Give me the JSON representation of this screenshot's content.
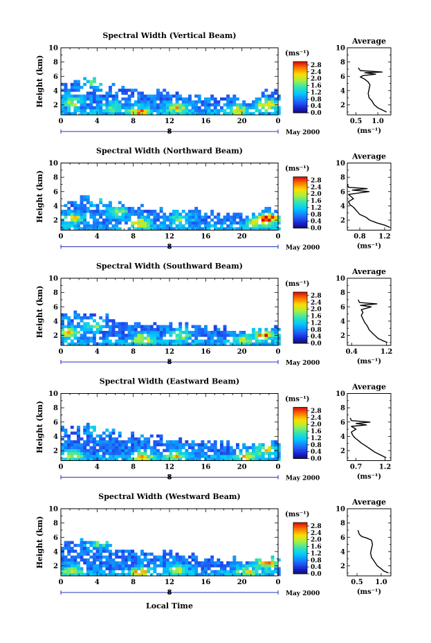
{
  "figure": {
    "xlabel": "Local Time",
    "ylabel": "Height (km)",
    "day_label": "8",
    "month_label": "May 2000",
    "colorbar_unit": "(ms⁻¹)",
    "colorbar_ticks": [
      "2.8",
      "2.4",
      "2.0",
      "1.6",
      "1.2",
      "0.8",
      "0.4",
      "0.0"
    ],
    "avg_title": "Average",
    "avg_unit": "(ms⁻¹)"
  },
  "chart_data": [
    {
      "type": "heatmap",
      "title": "Spectral Width (Vertical Beam)",
      "xlabel": "Local Time",
      "ylabel": "Height (km)",
      "x_ticks": [
        "0",
        "4",
        "8",
        "12",
        "16",
        "20",
        "0"
      ],
      "y_ticks": [
        "2",
        "4",
        "6",
        "8",
        "10"
      ],
      "xlim": [
        0,
        24
      ],
      "ylim": [
        0.6,
        10
      ],
      "colorbar": {
        "min": 0,
        "max": 3.0,
        "ticks": [
          "2.8",
          "2.4",
          "2.0",
          "1.6",
          "1.2",
          "0.8",
          "0.4",
          "0.0"
        ]
      },
      "top_km": [
        5.0,
        5.3,
        5.8,
        5.6,
        5.0,
        4.9,
        4.7,
        4.5,
        4.2,
        4.1,
        4.0,
        3.9,
        3.7,
        3.6,
        3.6,
        3.5,
        3.4,
        3.3,
        3.2,
        3.1,
        2.9,
        3.1,
        3.9,
        4.2
      ],
      "hot": [
        {
          "t": 1.0,
          "z": 2.6,
          "v": 2.0
        },
        {
          "t": 3.8,
          "z": 5.4,
          "v": 1.8
        },
        {
          "t": 5.5,
          "z": 2.0,
          "v": 1.6
        },
        {
          "t": 8.5,
          "z": 1.3,
          "v": 2.4
        },
        {
          "t": 12.6,
          "z": 1.8,
          "v": 2.2
        },
        {
          "t": 19.3,
          "z": 1.5,
          "v": 2.0
        },
        {
          "t": 22.6,
          "z": 2.2,
          "v": 2.7
        }
      ],
      "avg": {
        "xticks": [
          "0.5",
          "1.0"
        ],
        "xlim": [
          0.3,
          1.3
        ],
        "yticks": [
          "2",
          "4",
          "6",
          "8",
          "10"
        ],
        "profile": [
          [
            1.2,
            1.0
          ],
          [
            1.1,
            1.3
          ],
          [
            1.0,
            1.6
          ],
          [
            0.92,
            2.0
          ],
          [
            0.86,
            2.6
          ],
          [
            0.8,
            3.0
          ],
          [
            0.78,
            3.6
          ],
          [
            0.8,
            4.2
          ],
          [
            0.82,
            4.8
          ],
          [
            0.78,
            5.2
          ],
          [
            0.7,
            5.6
          ],
          [
            0.6,
            5.9
          ],
          [
            0.66,
            6.1
          ],
          [
            0.95,
            6.3
          ],
          [
            0.7,
            6.5
          ],
          [
            1.1,
            6.6
          ],
          [
            0.6,
            6.8
          ],
          [
            0.55,
            7.2
          ]
        ]
      }
    },
    {
      "type": "heatmap",
      "title": "Spectral Width (Northward Beam)",
      "xlabel": "Local Time",
      "ylabel": "Height (km)",
      "x_ticks": [
        "0",
        "4",
        "8",
        "12",
        "16",
        "20",
        "0"
      ],
      "y_ticks": [
        "2",
        "4",
        "6",
        "8",
        "10"
      ],
      "xlim": [
        0,
        24
      ],
      "ylim": [
        0.6,
        10
      ],
      "colorbar": {
        "min": 0,
        "max": 3.0,
        "ticks": [
          "2.8",
          "2.4",
          "2.0",
          "1.6",
          "1.2",
          "0.8",
          "0.4",
          "0.0"
        ]
      },
      "top_km": [
        4.8,
        5.0,
        5.5,
        5.4,
        4.9,
        4.5,
        4.4,
        4.3,
        4.1,
        4.0,
        3.8,
        3.7,
        3.6,
        3.5,
        3.5,
        3.4,
        3.3,
        3.2,
        3.1,
        3.0,
        2.9,
        3.0,
        3.5,
        4.0
      ],
      "hot": [
        {
          "t": 1.2,
          "z": 2.5,
          "v": 2.1
        },
        {
          "t": 4.0,
          "z": 5.2,
          "v": 1.7
        },
        {
          "t": 6.0,
          "z": 3.3,
          "v": 1.8
        },
        {
          "t": 8.6,
          "z": 1.8,
          "v": 2.2
        },
        {
          "t": 13.0,
          "z": 2.4,
          "v": 1.8
        },
        {
          "t": 22.8,
          "z": 2.5,
          "v": 2.8
        },
        {
          "t": 21.6,
          "z": 2.0,
          "v": 2.5
        }
      ],
      "avg": {
        "xticks": [
          "0.8",
          "1.2"
        ],
        "xlim": [
          0.6,
          1.3
        ],
        "yticks": [
          "2",
          "4",
          "6",
          "8",
          "10"
        ],
        "profile": [
          [
            1.28,
            1.0
          ],
          [
            1.2,
            1.3
          ],
          [
            1.08,
            1.6
          ],
          [
            0.96,
            2.0
          ],
          [
            0.9,
            2.4
          ],
          [
            0.8,
            2.8
          ],
          [
            0.76,
            3.2
          ],
          [
            0.7,
            3.8
          ],
          [
            0.64,
            4.2
          ],
          [
            0.62,
            4.6
          ],
          [
            0.7,
            5.0
          ],
          [
            0.62,
            5.6
          ],
          [
            0.95,
            6.0
          ],
          [
            0.68,
            6.2
          ],
          [
            0.92,
            6.4
          ],
          [
            0.62,
            6.6
          ],
          [
            0.6,
            7.0
          ]
        ]
      }
    },
    {
      "type": "heatmap",
      "title": "Spectral Width (Southward Beam)",
      "xlabel": "Local Time",
      "ylabel": "Height (km)",
      "x_ticks": [
        "0",
        "4",
        "8",
        "12",
        "16",
        "20",
        "0"
      ],
      "y_ticks": [
        "2",
        "4",
        "6",
        "8",
        "10"
      ],
      "xlim": [
        0,
        24
      ],
      "ylim": [
        0.6,
        10
      ],
      "colorbar": {
        "min": 0,
        "max": 3.0,
        "ticks": [
          "2.8",
          "2.4",
          "2.0",
          "1.6",
          "1.2",
          "0.8",
          "0.4",
          "0.0"
        ]
      },
      "top_km": [
        5.2,
        5.3,
        5.1,
        5.0,
        4.8,
        4.6,
        4.4,
        4.2,
        4.0,
        3.9,
        3.8,
        3.7,
        3.6,
        3.5,
        3.4,
        3.3,
        3.2,
        3.1,
        3.0,
        2.9,
        2.8,
        2.9,
        3.0,
        3.4
      ],
      "hot": [
        {
          "t": 0.8,
          "z": 2.6,
          "v": 2.2
        },
        {
          "t": 3.5,
          "z": 3.6,
          "v": 1.8
        },
        {
          "t": 9.0,
          "z": 1.8,
          "v": 2.3
        },
        {
          "t": 13.0,
          "z": 2.2,
          "v": 2.0
        },
        {
          "t": 20.0,
          "z": 1.6,
          "v": 1.8
        },
        {
          "t": 22.4,
          "z": 2.3,
          "v": 2.7
        }
      ],
      "avg": {
        "xticks": [
          "0.4",
          "1.2"
        ],
        "xlim": [
          0.3,
          1.3
        ],
        "yticks": [
          "2",
          "4",
          "6",
          "8",
          "10"
        ],
        "profile": [
          [
            1.22,
            1.0
          ],
          [
            1.1,
            1.3
          ],
          [
            1.0,
            1.6
          ],
          [
            0.95,
            1.9
          ],
          [
            0.88,
            2.3
          ],
          [
            0.8,
            2.8
          ],
          [
            0.76,
            3.3
          ],
          [
            0.7,
            3.8
          ],
          [
            0.66,
            4.3
          ],
          [
            0.62,
            4.8
          ],
          [
            0.66,
            5.2
          ],
          [
            0.62,
            5.6
          ],
          [
            0.85,
            6.0
          ],
          [
            0.6,
            6.2
          ],
          [
            0.98,
            6.4
          ],
          [
            0.58,
            6.6
          ],
          [
            0.55,
            7.0
          ]
        ]
      }
    },
    {
      "type": "heatmap",
      "title": "Spectral Width (Eastward Beam)",
      "xlabel": "Local Time",
      "ylabel": "Height (km)",
      "x_ticks": [
        "0",
        "4",
        "8",
        "12",
        "16",
        "20",
        "0"
      ],
      "y_ticks": [
        "2",
        "4",
        "6",
        "8",
        "10"
      ],
      "xlim": [
        0,
        24
      ],
      "ylim": [
        0.6,
        10
      ],
      "colorbar": {
        "min": 0,
        "max": 3.0,
        "ticks": [
          "2.8",
          "2.4",
          "2.0",
          "1.6",
          "1.2",
          "0.8",
          "0.4",
          "0.0"
        ]
      },
      "top_km": [
        5.3,
        5.5,
        5.8,
        5.6,
        5.2,
        4.9,
        4.6,
        4.4,
        4.2,
        4.1,
        4.0,
        3.9,
        3.8,
        3.6,
        3.5,
        3.4,
        3.3,
        3.2,
        3.1,
        3.0,
        2.9,
        2.9,
        3.2,
        3.6
      ],
      "hot": [
        {
          "t": 1.1,
          "z": 1.6,
          "v": 1.9
        },
        {
          "t": 4.0,
          "z": 5.4,
          "v": 1.7
        },
        {
          "t": 8.8,
          "z": 1.4,
          "v": 2.1
        },
        {
          "t": 12.6,
          "z": 1.6,
          "v": 2.0
        },
        {
          "t": 20.3,
          "z": 1.4,
          "v": 2.0
        },
        {
          "t": 22.5,
          "z": 2.4,
          "v": 2.4
        }
      ],
      "avg": {
        "xticks": [
          "0.7",
          "1.2"
        ],
        "xlim": [
          0.55,
          1.3
        ],
        "yticks": [
          "2",
          "4",
          "6",
          "8",
          "10"
        ],
        "profile": [
          [
            1.22,
            1.0
          ],
          [
            1.12,
            1.4
          ],
          [
            1.02,
            1.8
          ],
          [
            0.95,
            2.2
          ],
          [
            0.88,
            2.6
          ],
          [
            0.8,
            3.0
          ],
          [
            0.74,
            3.4
          ],
          [
            0.68,
            3.8
          ],
          [
            0.64,
            4.2
          ],
          [
            0.62,
            4.6
          ],
          [
            0.7,
            5.0
          ],
          [
            0.62,
            5.4
          ],
          [
            0.88,
            5.6
          ],
          [
            0.7,
            5.8
          ],
          [
            0.94,
            6.0
          ],
          [
            0.62,
            6.2
          ],
          [
            0.6,
            6.6
          ]
        ]
      }
    },
    {
      "type": "heatmap",
      "title": "Spectral Width (Westward Beam)",
      "xlabel": "Local Time",
      "ylabel": "Height (km)",
      "x_ticks": [
        "0",
        "4",
        "8",
        "12",
        "16",
        "20",
        "0"
      ],
      "y_ticks": [
        "2",
        "4",
        "6",
        "8",
        "10"
      ],
      "xlim": [
        0,
        24
      ],
      "ylim": [
        0.6,
        10
      ],
      "colorbar": {
        "min": 0,
        "max": 3.0,
        "ticks": [
          "2.8",
          "2.4",
          "2.0",
          "1.6",
          "1.2",
          "0.8",
          "0.4",
          "0.0"
        ]
      },
      "top_km": [
        5.4,
        5.6,
        5.9,
        5.6,
        5.2,
        5.0,
        4.7,
        4.5,
        4.2,
        4.1,
        4.0,
        3.9,
        3.8,
        3.7,
        3.6,
        3.5,
        3.4,
        3.3,
        3.2,
        3.1,
        3.0,
        3.0,
        3.3,
        3.7
      ],
      "hot": [
        {
          "t": 1.0,
          "z": 1.6,
          "v": 1.8
        },
        {
          "t": 4.0,
          "z": 5.5,
          "v": 1.7
        },
        {
          "t": 8.6,
          "z": 1.3,
          "v": 2.2
        },
        {
          "t": 12.7,
          "z": 1.7,
          "v": 2.0
        },
        {
          "t": 20.4,
          "z": 1.5,
          "v": 1.9
        },
        {
          "t": 22.6,
          "z": 2.7,
          "v": 2.6
        }
      ],
      "avg": {
        "xticks": [
          "0.5",
          "1.0"
        ],
        "xlim": [
          0.3,
          1.2
        ],
        "yticks": [
          "2",
          "4",
          "6",
          "8",
          "10"
        ],
        "profile": [
          [
            1.15,
            1.0
          ],
          [
            1.05,
            1.3
          ],
          [
            1.0,
            1.6
          ],
          [
            0.92,
            2.0
          ],
          [
            0.86,
            2.6
          ],
          [
            0.8,
            3.2
          ],
          [
            0.78,
            3.8
          ],
          [
            0.8,
            4.4
          ],
          [
            0.82,
            5.0
          ],
          [
            0.8,
            5.6
          ],
          [
            0.7,
            5.9
          ],
          [
            0.6,
            6.1
          ],
          [
            0.55,
            6.4
          ],
          [
            0.52,
            7.0
          ]
        ]
      }
    }
  ]
}
